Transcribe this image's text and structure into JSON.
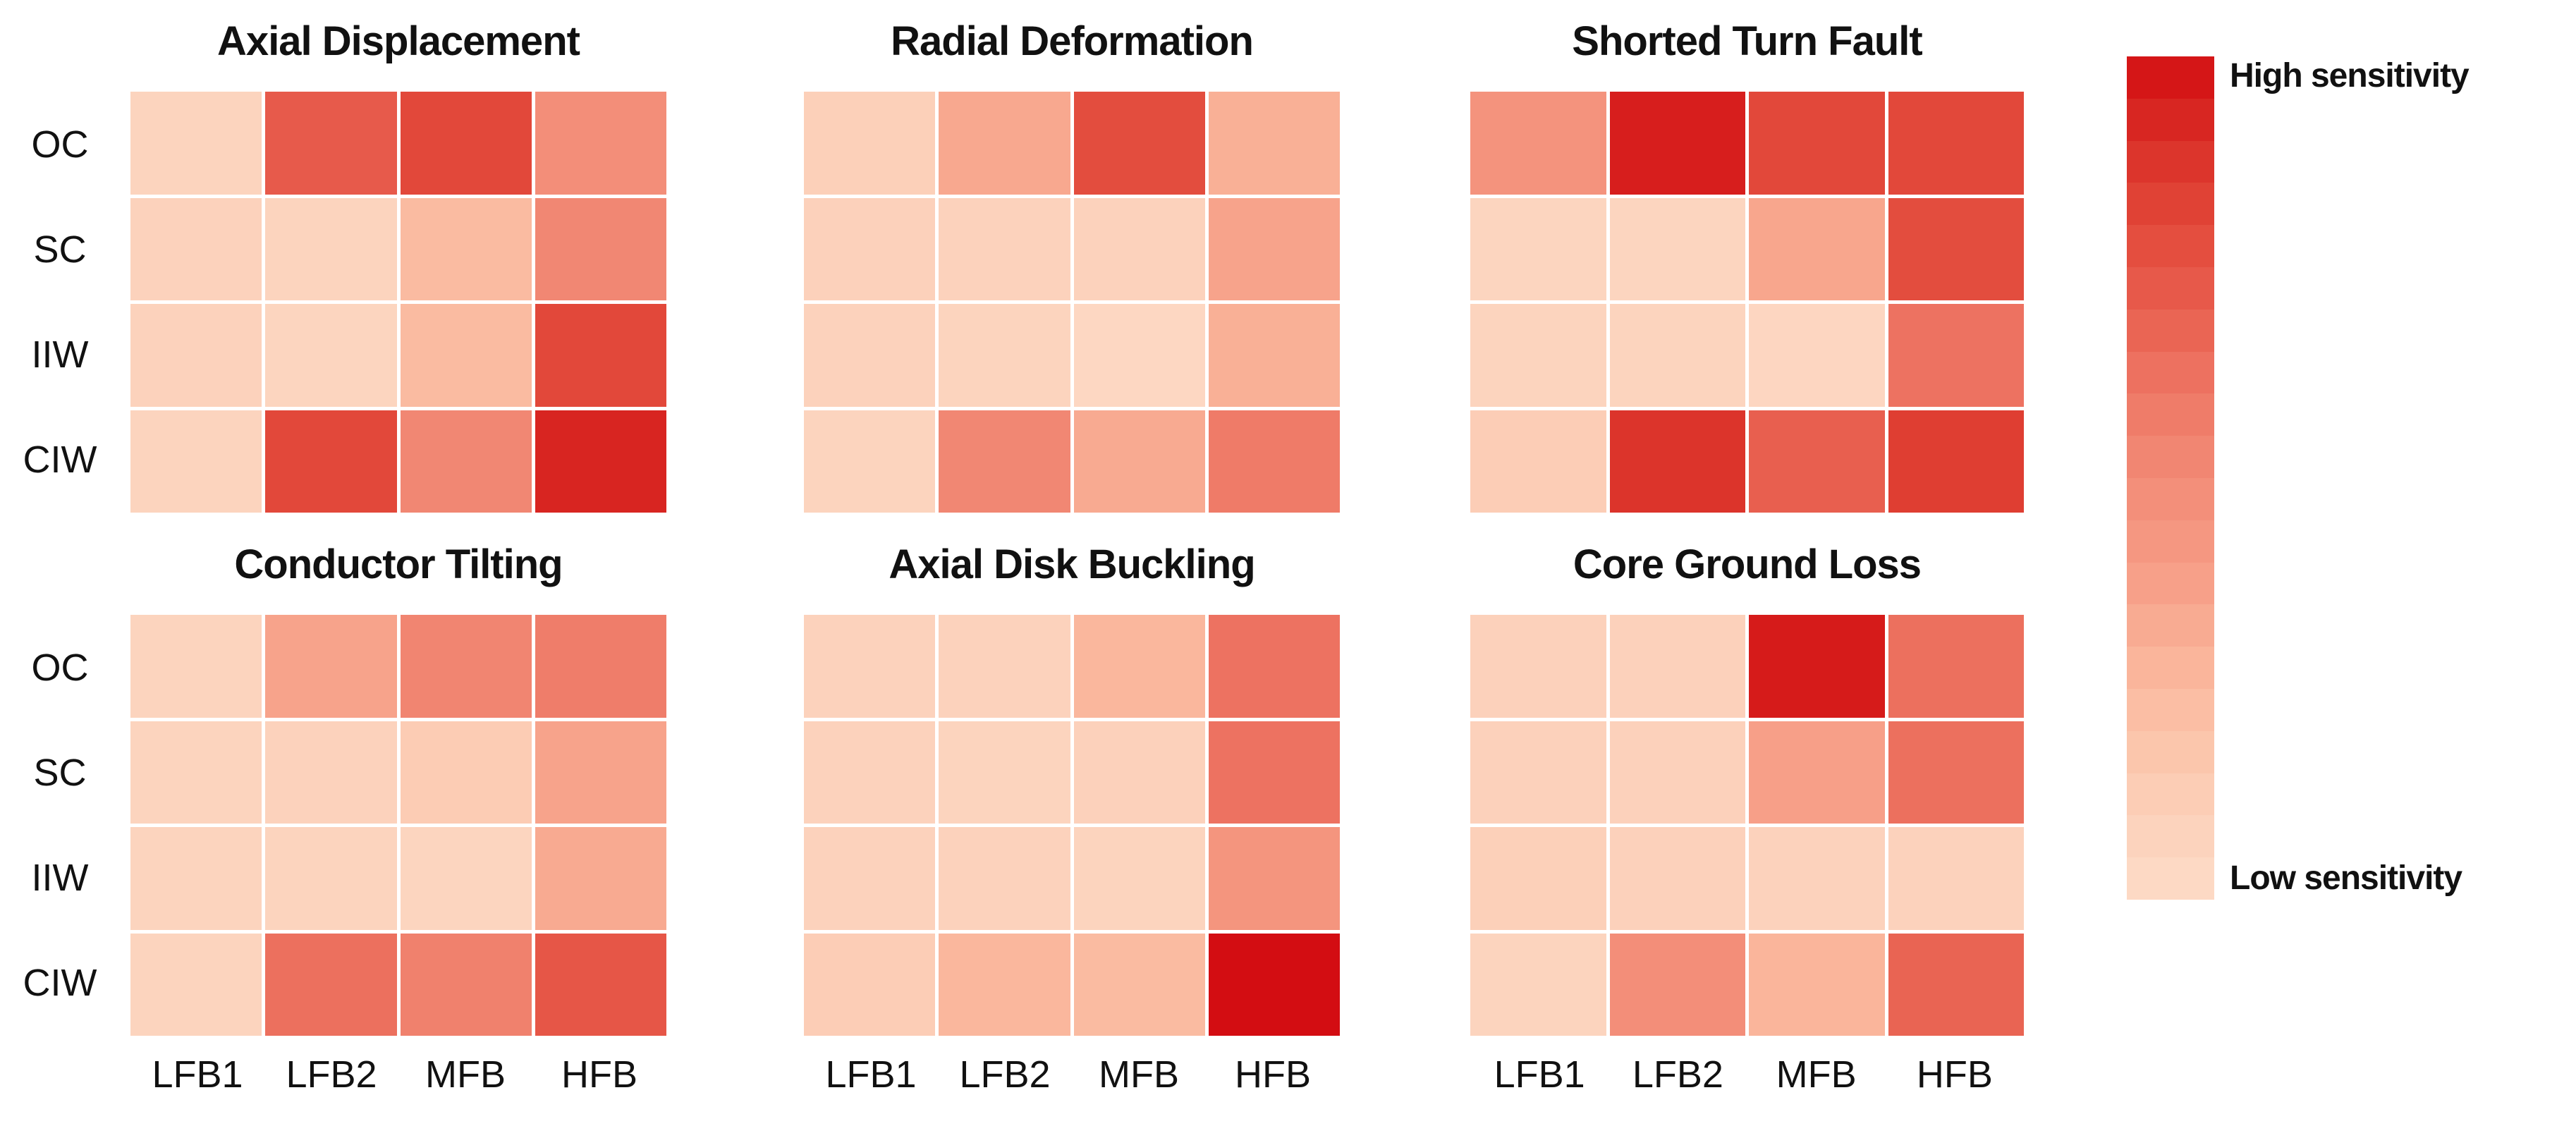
{
  "figure": {
    "row_labels": [
      "OC",
      "SC",
      "IIW",
      "CIW"
    ],
    "col_labels": [
      "LFB1",
      "LFB2",
      "MFB",
      "HFB"
    ],
    "colorbar": {
      "high_label": "High sensitivity",
      "low_label": "Low sensitivity",
      "steps": 20
    },
    "colormap": [
      [
        0.0,
        "#FDDCC8"
      ],
      [
        0.1,
        "#FCD0B9"
      ],
      [
        0.2,
        "#FBC2A8"
      ],
      [
        0.3,
        "#F9B096"
      ],
      [
        0.4,
        "#F69B84"
      ],
      [
        0.5,
        "#F28B76"
      ],
      [
        0.6,
        "#EE7765"
      ],
      [
        0.7,
        "#E85F4F"
      ],
      [
        0.8,
        "#E2483A"
      ],
      [
        0.9,
        "#DA2F27"
      ],
      [
        1.0,
        "#D30D12"
      ]
    ]
  },
  "chart_data": [
    {
      "type": "heatmap",
      "title": "Axial Displacement",
      "rows": [
        "OC",
        "SC",
        "IIW",
        "CIW"
      ],
      "columns": [
        "LFB1",
        "LFB2",
        "MFB",
        "HFB"
      ],
      "value_range": [
        0,
        1
      ],
      "values": [
        [
          0.07,
          0.72,
          0.8,
          0.48
        ],
        [
          0.08,
          0.07,
          0.24,
          0.52
        ],
        [
          0.08,
          0.06,
          0.24,
          0.8
        ],
        [
          0.07,
          0.8,
          0.52,
          0.93
        ]
      ]
    },
    {
      "type": "heatmap",
      "title": "Radial Deformation",
      "rows": [
        "OC",
        "SC",
        "IIW",
        "CIW"
      ],
      "columns": [
        "LFB1",
        "LFB2",
        "MFB",
        "HFB"
      ],
      "value_range": [
        0,
        1
      ],
      "values": [
        [
          0.1,
          0.34,
          0.78,
          0.3
        ],
        [
          0.09,
          0.08,
          0.08,
          0.36
        ],
        [
          0.08,
          0.07,
          0.04,
          0.3
        ],
        [
          0.07,
          0.52,
          0.33,
          0.58
        ]
      ]
    },
    {
      "type": "heatmap",
      "title": "Shorted Turn Fault",
      "rows": [
        "OC",
        "SC",
        "IIW",
        "CIW"
      ],
      "columns": [
        "LFB1",
        "LFB2",
        "MFB",
        "HFB"
      ],
      "value_range": [
        0,
        1
      ],
      "values": [
        [
          0.45,
          0.95,
          0.8,
          0.8
        ],
        [
          0.06,
          0.06,
          0.35,
          0.78
        ],
        [
          0.07,
          0.07,
          0.05,
          0.62
        ],
        [
          0.12,
          0.88,
          0.7,
          0.84
        ]
      ]
    },
    {
      "type": "heatmap",
      "title": "Conductor Tilting",
      "rows": [
        "OC",
        "SC",
        "IIW",
        "CIW"
      ],
      "columns": [
        "LFB1",
        "LFB2",
        "MFB",
        "HFB"
      ],
      "value_range": [
        0,
        1
      ],
      "values": [
        [
          0.07,
          0.36,
          0.53,
          0.57
        ],
        [
          0.07,
          0.08,
          0.13,
          0.36
        ],
        [
          0.07,
          0.07,
          0.06,
          0.33
        ],
        [
          0.07,
          0.63,
          0.55,
          0.74
        ]
      ]
    },
    {
      "type": "heatmap",
      "title": "Axial Disk Buckling",
      "rows": [
        "OC",
        "SC",
        "IIW",
        "CIW"
      ],
      "columns": [
        "LFB1",
        "LFB2",
        "MFB",
        "HFB"
      ],
      "value_range": [
        0,
        1
      ],
      "values": [
        [
          0.08,
          0.08,
          0.26,
          0.62
        ],
        [
          0.08,
          0.07,
          0.09,
          0.62
        ],
        [
          0.08,
          0.08,
          0.07,
          0.44
        ],
        [
          0.12,
          0.26,
          0.24,
          1.0
        ]
      ]
    },
    {
      "type": "heatmap",
      "title": "Core Ground Loss",
      "rows": [
        "OC",
        "SC",
        "IIW",
        "CIW"
      ],
      "columns": [
        "LFB1",
        "LFB2",
        "MFB",
        "HFB"
      ],
      "value_range": [
        0,
        1
      ],
      "values": [
        [
          0.09,
          0.09,
          0.96,
          0.63
        ],
        [
          0.09,
          0.09,
          0.38,
          0.63
        ],
        [
          0.1,
          0.09,
          0.08,
          0.08
        ],
        [
          0.07,
          0.48,
          0.27,
          0.68
        ]
      ]
    }
  ]
}
